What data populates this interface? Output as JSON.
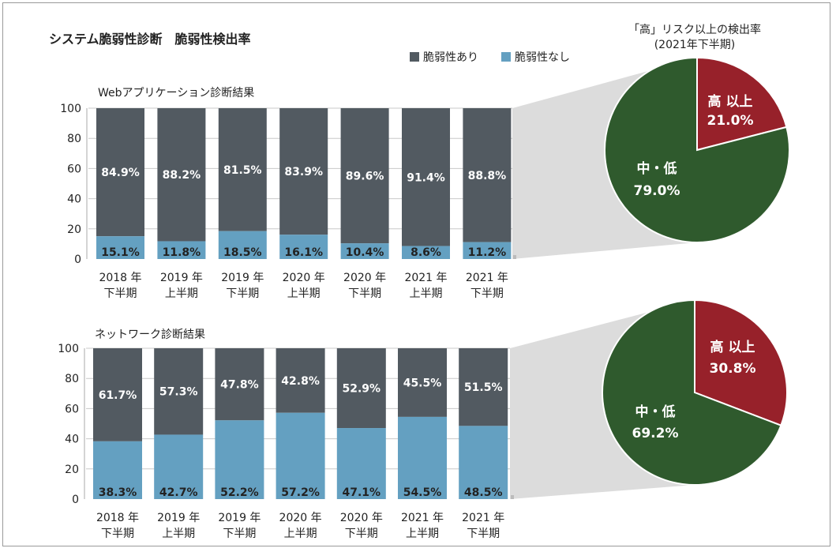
{
  "title": "システム脆弱性診断　脆弱性検出率",
  "legend": [
    {
      "label": "脆弱性あり",
      "color": "#525a61"
    },
    {
      "label": "脆弱性なし",
      "color": "#64a0c1"
    }
  ],
  "pie_header": [
    "「高」リスク以上の検出率",
    "(2021年下半期)"
  ],
  "colors": {
    "vuln": "#525a61",
    "novuln": "#64a0c1",
    "high": "#97212a",
    "midlow": "#2f5a2d",
    "connector": "#dcdcdc",
    "grid": "#c8c8c8"
  },
  "chart_data": [
    {
      "type": "bar",
      "stacked": true,
      "title": "Webアプリケーション診断結果",
      "categories": [
        [
          "2018 年",
          "下半期"
        ],
        [
          "2019 年",
          "上半期"
        ],
        [
          "2019 年",
          "下半期"
        ],
        [
          "2020 年",
          "上半期"
        ],
        [
          "2020 年",
          "下半期"
        ],
        [
          "2021 年",
          "上半期"
        ],
        [
          "2021 年",
          "下半期"
        ]
      ],
      "series": [
        {
          "name": "脆弱性なし",
          "values": [
            15.1,
            11.8,
            18.5,
            16.1,
            10.4,
            8.6,
            11.2
          ],
          "labels": [
            "15.1%",
            "11.8%",
            "18.5%",
            "16.1%",
            "10.4%",
            "8.6%",
            "11.2%"
          ]
        },
        {
          "name": "脆弱性あり",
          "values": [
            84.9,
            88.2,
            81.5,
            83.9,
            89.6,
            91.4,
            88.8
          ],
          "labels": [
            "84.9%",
            "88.2%",
            "81.5%",
            "83.9%",
            "89.6%",
            "91.4%",
            "88.8%"
          ]
        }
      ],
      "yticks": [
        "0",
        "20",
        "40",
        "60",
        "80",
        "100"
      ],
      "ylim": [
        0,
        100
      ],
      "grid": true
    },
    {
      "type": "pie",
      "slices": [
        {
          "name": "高 以上",
          "value": 21.0,
          "label": "21.0%"
        },
        {
          "name": "中・低",
          "value": 79.0,
          "label": "79.0%"
        }
      ]
    },
    {
      "type": "bar",
      "stacked": true,
      "title": "ネットワーク診断結果",
      "categories": [
        [
          "2018 年",
          "下半期"
        ],
        [
          "2019 年",
          "上半期"
        ],
        [
          "2019 年",
          "下半期"
        ],
        [
          "2020 年",
          "上半期"
        ],
        [
          "2020 年",
          "下半期"
        ],
        [
          "2021 年",
          "上半期"
        ],
        [
          "2021 年",
          "下半期"
        ]
      ],
      "series": [
        {
          "name": "脆弱性なし",
          "values": [
            38.3,
            42.7,
            52.2,
            57.2,
            47.1,
            54.5,
            48.5
          ],
          "labels": [
            "38.3%",
            "42.7%",
            "52.2%",
            "57.2%",
            "47.1%",
            "54.5%",
            "48.5%"
          ]
        },
        {
          "name": "脆弱性あり",
          "values": [
            61.7,
            57.3,
            47.8,
            42.8,
            52.9,
            45.5,
            51.5
          ],
          "labels": [
            "61.7%",
            "57.3%",
            "47.8%",
            "42.8%",
            "52.9%",
            "45.5%",
            "51.5%"
          ]
        }
      ],
      "yticks": [
        "0",
        "20",
        "40",
        "60",
        "80",
        "100"
      ],
      "ylim": [
        0,
        100
      ],
      "grid": true
    },
    {
      "type": "pie",
      "slices": [
        {
          "name": "高 以上",
          "value": 30.8,
          "label": "30.8%"
        },
        {
          "name": "中・低",
          "value": 69.2,
          "label": "69.2%"
        }
      ]
    }
  ]
}
